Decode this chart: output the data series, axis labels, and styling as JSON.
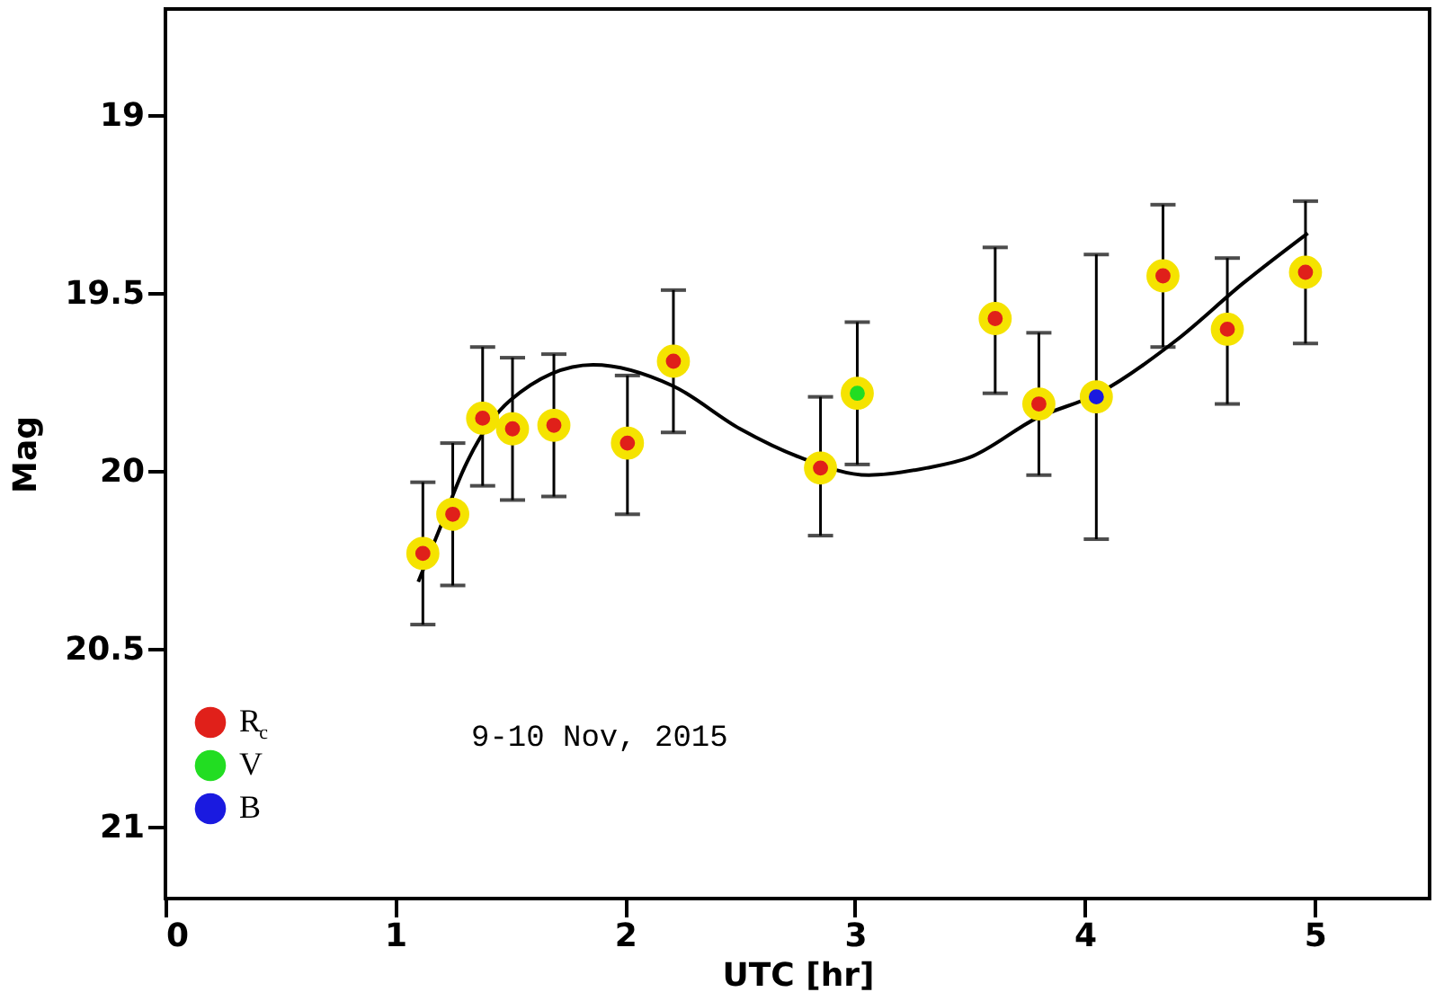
{
  "chart_data": {
    "type": "scatter",
    "xlabel": "UTC [hr]",
    "ylabel": "Mag",
    "xlim": [
      0,
      5.5
    ],
    "ylim": [
      21.2,
      18.7
    ],
    "xticks": [
      0,
      1,
      2,
      3,
      4,
      5
    ],
    "yticks": [
      19,
      19.5,
      20,
      20.5,
      21
    ],
    "grid": false,
    "legend": "bottom left",
    "annotations": [
      "9-10 Nov, 2015"
    ],
    "series": [
      {
        "name": "R$_{c}$",
        "color": "#e0201a",
        "marker": "circle",
        "x": [
          1.12,
          1.25,
          1.38,
          1.51,
          1.69,
          2.01,
          2.21,
          2.85,
          3.61,
          3.8,
          4.34,
          4.62,
          4.96
        ],
        "values": [
          20.23,
          20.12,
          19.85,
          19.88,
          19.87,
          19.92,
          19.69,
          19.99,
          19.57,
          19.81,
          19.45,
          19.6,
          19.44
        ],
        "errors": [
          [
            20.03,
            20.43
          ],
          [
            19.92,
            20.32
          ],
          [
            19.65,
            20.04
          ],
          [
            19.68,
            20.08
          ],
          [
            19.67,
            20.07
          ],
          [
            19.73,
            20.12
          ],
          [
            19.49,
            19.89
          ],
          [
            19.79,
            20.18
          ],
          [
            19.37,
            19.78
          ],
          [
            19.61,
            20.01
          ],
          [
            19.25,
            19.65
          ],
          [
            19.4,
            19.81
          ],
          [
            19.24,
            19.64
          ]
        ]
      },
      {
        "name": "V",
        "color": "#22dd22",
        "marker": "circle",
        "x": [
          3.01
        ],
        "values": [
          19.78
        ],
        "errors": [
          [
            19.58,
            19.98
          ]
        ]
      },
      {
        "name": "B",
        "color": "#1a1ae0",
        "marker": "circle",
        "x": [
          4.05
        ],
        "values": [
          19.79
        ],
        "errors": [
          [
            19.39,
            20.19
          ]
        ]
      },
      {
        "type": "line",
        "color": "#000000",
        "x": [
          1.1,
          1.2,
          1.3,
          1.5,
          1.86,
          2.21,
          2.5,
          2.76,
          3.06,
          3.31,
          3.5,
          3.79,
          4.06,
          4.4,
          4.69,
          4.97
        ],
        "values": [
          20.31,
          20.15,
          19.99,
          19.8,
          19.7,
          19.76,
          19.88,
          19.96,
          20.01,
          19.99,
          19.96,
          19.85,
          19.78,
          19.63,
          19.47,
          19.33
        ]
      }
    ]
  }
}
